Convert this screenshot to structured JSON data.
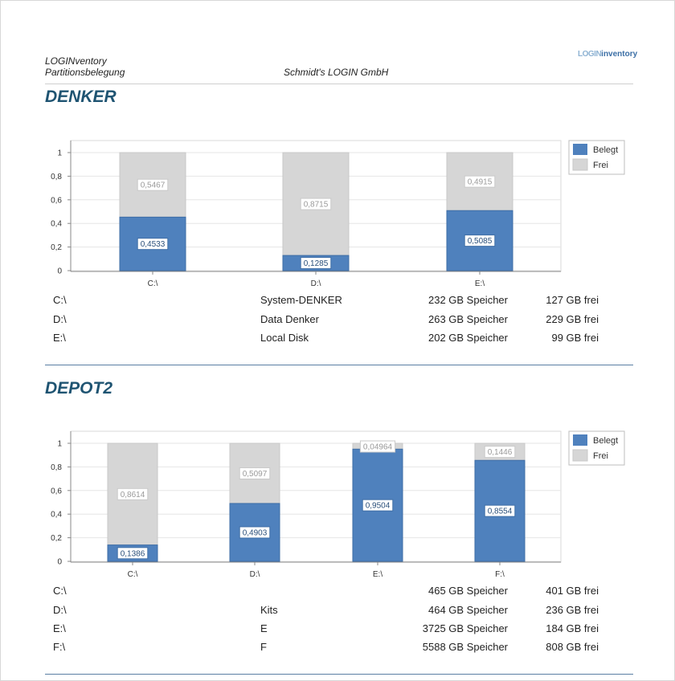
{
  "header": {
    "app_name": "LOGINventory",
    "report_name": "Partitionsbelegung",
    "company": "Schmidt's LOGIN GmbH",
    "logo": {
      "prefix": "LOGIN",
      "suffix": "inventory"
    }
  },
  "colors": {
    "used": "#4f81bd",
    "free": "#d6d6d6",
    "title": "#1f5472"
  },
  "sections": [
    {
      "title": "DENKER",
      "chart_data": {
        "type": "bar",
        "stacked": true,
        "categories": [
          "C:\\",
          "D:\\",
          "E:\\"
        ],
        "series": [
          {
            "name": "Belegt",
            "values": [
              0.4533,
              0.1285,
              0.5085
            ],
            "labels": [
              "0,4533",
              "0,1285",
              "0,5085"
            ]
          },
          {
            "name": "Frei",
            "values": [
              0.5467,
              0.8715,
              0.4915
            ],
            "labels": [
              "0,5467",
              "0,8715",
              "0,4915"
            ]
          }
        ],
        "ylim": [
          0,
          1
        ],
        "yticks": [
          "0",
          "0,2",
          "0,4",
          "0,6",
          "0,8",
          "1"
        ],
        "grid": true,
        "legend": "top-right"
      },
      "rows": [
        {
          "drive": "C:\\",
          "label": "System-DENKER",
          "size": "232 GB Speicher",
          "free": "127 GB frei"
        },
        {
          "drive": "D:\\",
          "label": "Data Denker",
          "size": "263 GB Speicher",
          "free": "229 GB frei"
        },
        {
          "drive": "E:\\",
          "label": "Local Disk",
          "size": "202 GB Speicher",
          "free": "99 GB frei"
        }
      ]
    },
    {
      "title": "DEPOT2",
      "chart_data": {
        "type": "bar",
        "stacked": true,
        "categories": [
          "C:\\",
          "D:\\",
          "E:\\",
          "F:\\"
        ],
        "series": [
          {
            "name": "Belegt",
            "values": [
              0.1386,
              0.4903,
              0.9504,
              0.8554
            ],
            "labels": [
              "0,1386",
              "0,4903",
              "0,9504",
              "0,8554"
            ]
          },
          {
            "name": "Frei",
            "values": [
              0.8614,
              0.5097,
              0.04964,
              0.1446
            ],
            "labels": [
              "0,8614",
              "0,5097",
              "0,04964",
              "0,1446"
            ]
          }
        ],
        "ylim": [
          0,
          1
        ],
        "yticks": [
          "0",
          "0,2",
          "0,4",
          "0,6",
          "0,8",
          "1"
        ],
        "grid": true,
        "legend": "top-right"
      },
      "rows": [
        {
          "drive": "C:\\",
          "label": "",
          "size": "465 GB Speicher",
          "free": "401 GB frei"
        },
        {
          "drive": "D:\\",
          "label": "Kits",
          "size": "464 GB Speicher",
          "free": "236 GB frei"
        },
        {
          "drive": "E:\\",
          "label": "E",
          "size": "3725 GB Speicher",
          "free": "184 GB frei"
        },
        {
          "drive": "F:\\",
          "label": "F",
          "size": "5588 GB Speicher",
          "free": "808 GB frei"
        }
      ]
    }
  ]
}
